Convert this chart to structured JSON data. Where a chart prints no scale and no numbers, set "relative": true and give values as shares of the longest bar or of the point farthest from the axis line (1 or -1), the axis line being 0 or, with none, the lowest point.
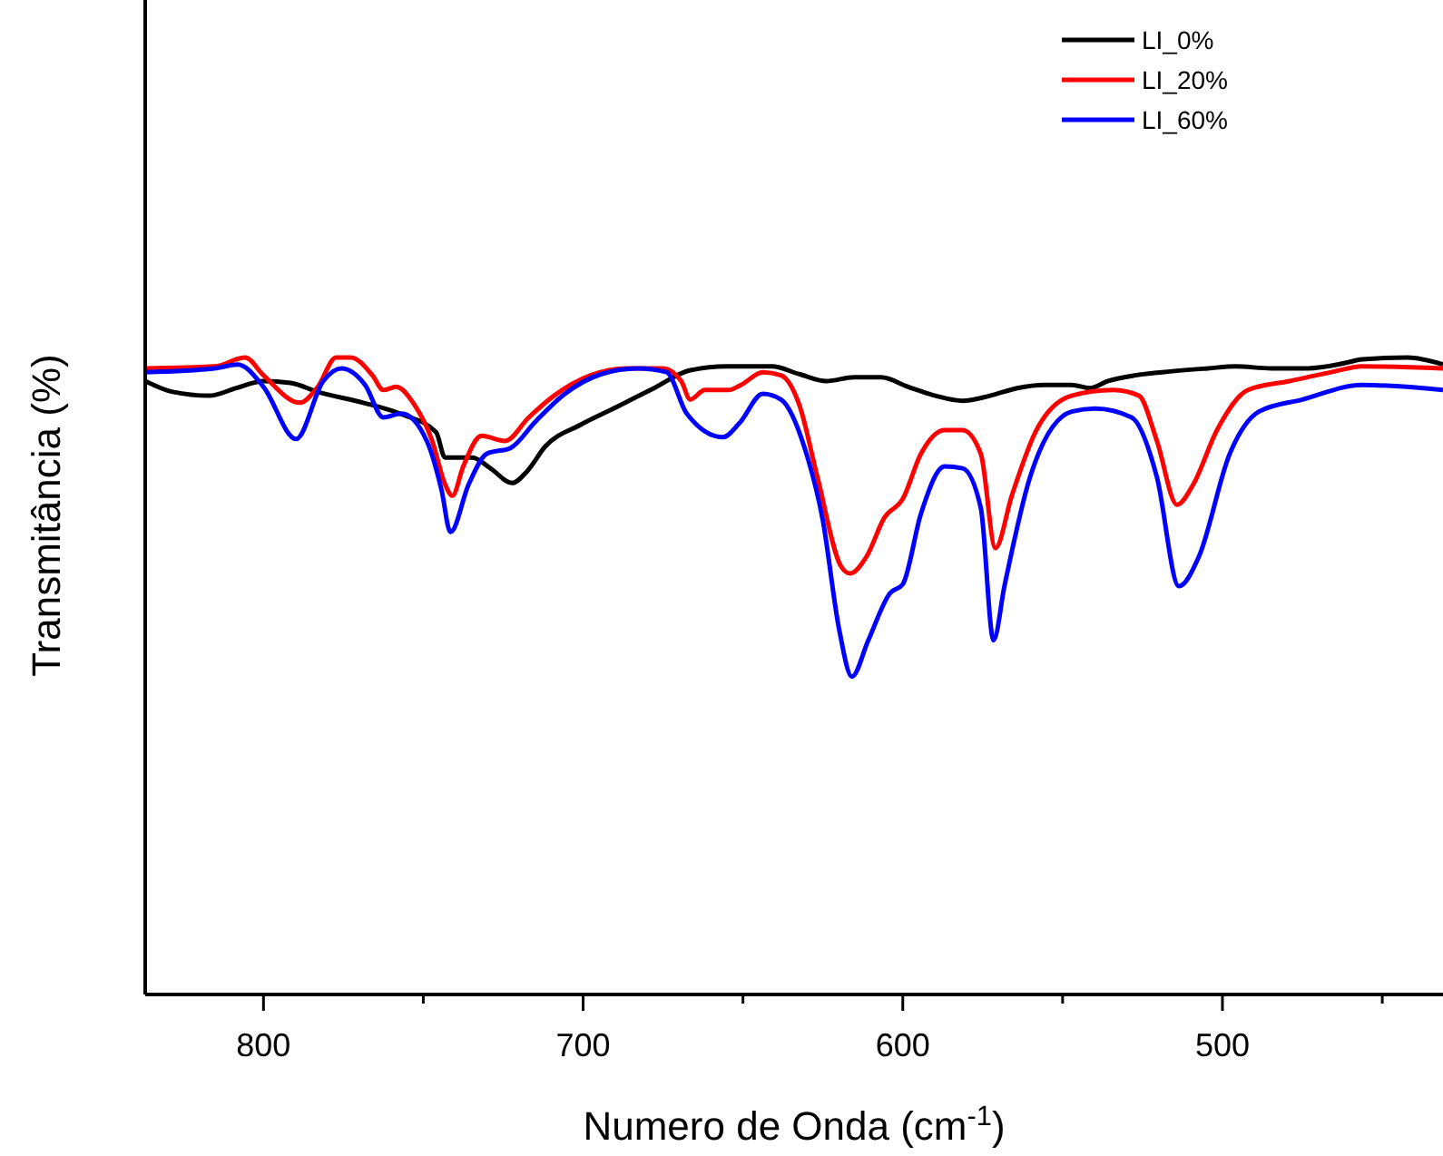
{
  "chart_data": {
    "type": "line",
    "xlabel": "Numero de Onda (cm$^{-1}$)",
    "ylabel": "Transmitância (%)",
    "relative": true,
    "xlim": [
      837,
      431
    ],
    "xticks": [
      800,
      {
        "value": 750,
        "label": null
      },
      700,
      {
        "value": 650,
        "label": null
      },
      600,
      {
        "value": 550,
        "label": null
      },
      500,
      {
        "value": 450,
        "label": null
      }
    ],
    "legend": "top right",
    "grid": false,
    "line_style": "solid",
    "series": [
      {
        "name": "LI_0%",
        "color": "#000000",
        "x": [
          837,
          828.4,
          817,
          808.5,
          800,
          791.5,
          783,
          768.8,
          757.4,
          746,
          743.2,
          734.7,
          729,
          722.2,
          717.6,
          711.9,
          700.6,
          689.2,
          677.8,
          666.5,
          655.1,
          640.9,
          632.4,
          623.9,
          615.3,
          606.8,
          598.3,
          589.8,
          581.3,
          572.7,
          564.2,
          555.7,
          547.2,
          541.5,
          535.8,
          527.3,
          518.8,
          504.5,
          496,
          484.7,
          473.3,
          461.9,
          456.3,
          442,
          431
        ],
        "values": [
          0.963,
          0.946,
          0.94,
          0.952,
          0.963,
          0.96,
          0.946,
          0.929,
          0.912,
          0.883,
          0.843,
          0.843,
          0.826,
          0.803,
          0.821,
          0.86,
          0.895,
          0.923,
          0.952,
          0.98,
          0.986,
          0.986,
          0.974,
          0.963,
          0.969,
          0.969,
          0.954,
          0.94,
          0.932,
          0.94,
          0.952,
          0.957,
          0.957,
          0.952,
          0.963,
          0.972,
          0.977,
          0.983,
          0.986,
          0.983,
          0.983,
          0.991,
          0.997,
          1.0,
          0.989
        ]
      },
      {
        "name": "LI_20%",
        "color": "#ff0000",
        "x": [
          837,
          815.3,
          805.7,
          800,
          788.6,
          783,
          777.3,
          772.7,
          765.9,
          762.5,
          758.5,
          752.8,
          747.2,
          743.2,
          740.9,
          737.5,
          731.8,
          724.4,
          717,
          709.1,
          697.7,
          686.4,
          675,
          669.3,
          666.5,
          661.9,
          654.5,
          650.6,
          643.8,
          638.1,
          632.4,
          626.7,
          619.3,
          616.5,
          611.4,
          605.7,
          600,
          594.3,
          586.9,
          581.3,
          575.6,
          571,
          565.9,
          558.5,
          547.2,
          534.1,
          526.1,
          520.5,
          514.2,
          509.1,
          501.7,
          492,
          479,
          465.9,
          456.3,
          431
        ],
        "values": [
          0.983,
          0.986,
          1.0,
          0.972,
          0.929,
          0.954,
          1.0,
          1.0,
          0.972,
          0.949,
          0.954,
          0.926,
          0.869,
          0.801,
          0.783,
          0.829,
          0.877,
          0.869,
          0.906,
          0.94,
          0.972,
          0.983,
          0.983,
          0.963,
          0.934,
          0.949,
          0.949,
          0.957,
          0.977,
          0.972,
          0.926,
          0.812,
          0.672,
          0.661,
          0.687,
          0.749,
          0.778,
          0.849,
          0.886,
          0.886,
          0.849,
          0.701,
          0.783,
          0.883,
          0.94,
          0.949,
          0.94,
          0.869,
          0.769,
          0.801,
          0.886,
          0.949,
          0.963,
          0.977,
          0.986,
          0.983
        ]
      },
      {
        "name": "LI_60%",
        "color": "#0000ff",
        "x": [
          837,
          815.3,
          808,
          800,
          789.8,
          781.3,
          775.6,
          768.2,
          762.5,
          756.8,
          748.9,
          744.3,
          741.5,
          735.8,
          730.1,
          722.7,
          714.8,
          705.7,
          694.3,
          683,
          673.9,
          667.6,
          656.3,
          651.1,
          643.8,
          638.1,
          630.7,
          625,
          619.9,
          615.9,
          610.8,
          604,
          600,
          594.3,
          586.9,
          581.3,
          575.6,
          571.6,
          568.2,
          560.2,
          547.2,
          539.8,
          528.4,
          520.5,
          513.6,
          507.4,
          497.7,
          488.6,
          475,
          456.3,
          431
        ],
        "values": [
          0.977,
          0.983,
          0.989,
          0.954,
          0.872,
          0.963,
          0.983,
          0.957,
          0.906,
          0.912,
          0.869,
          0.792,
          0.726,
          0.801,
          0.849,
          0.858,
          0.9,
          0.943,
          0.974,
          0.983,
          0.977,
          0.912,
          0.875,
          0.897,
          0.943,
          0.934,
          0.858,
          0.744,
          0.573,
          0.499,
          0.556,
          0.63,
          0.644,
          0.755,
          0.829,
          0.826,
          0.764,
          0.556,
          0.641,
          0.812,
          0.915,
          0.92,
          0.906,
          0.812,
          0.641,
          0.687,
          0.849,
          0.915,
          0.934,
          0.957,
          0.949
        ]
      }
    ]
  }
}
